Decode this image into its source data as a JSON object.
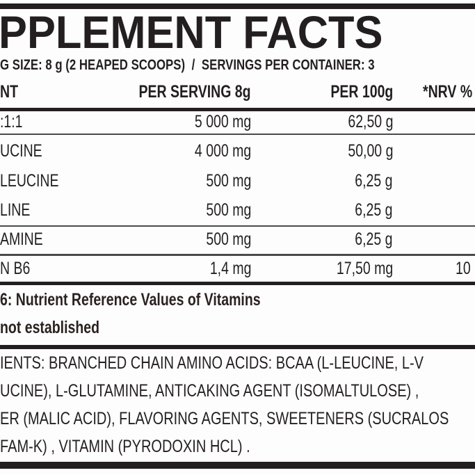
{
  "label": {
    "title": "PPLEMENT FACTS",
    "serving_size": "G SIZE: 8 g (2 HEAPED SCOOPS)",
    "separator": "/",
    "servings_per_container": "SERVINGS PER CONTAINER: 3",
    "table": {
      "headers": {
        "name": "NT",
        "per_serving": "PER SERVING 8g",
        "per_100g": "PER 100g",
        "nrv": "*NRV %"
      },
      "rows": [
        {
          "name": ":1:1",
          "per_serving": "5 000 mg",
          "per_100g": "62,50 g",
          "nrv": ""
        },
        {
          "name": "UCINE",
          "per_serving": "4 000 mg",
          "per_100g": "50,00 g",
          "nrv": ""
        },
        {
          "name": "LEUCINE",
          "per_serving": "500 mg",
          "per_100g": "6,25 g",
          "nrv": ""
        },
        {
          "name": "LINE",
          "per_serving": "500 mg",
          "per_100g": "6,25 g",
          "nrv": ""
        },
        {
          "name": "AMINE",
          "per_serving": "500 mg",
          "per_100g": "6,25 g",
          "nrv": ""
        },
        {
          "name": "N B6",
          "per_serving": "1,4 mg",
          "per_100g": "17,50 mg",
          "nrv": "10"
        }
      ]
    },
    "footnotes": [
      "6: Nutrient Reference Values  of  Vitamins",
      "not established"
    ],
    "ingredients_lines": [
      "IENTS: BRANCHED  CHAIN AMINO ACIDS: BCAA (L-LEUCINE, L-V",
      "UCINE), L-GLUTAMINE, ANTICAKING AGENT (ISOMALTULOSE) ,",
      "ER (MALIC ACID), FLAVORING AGENTS, SWEETENERS (SUCRALOS",
      "FAM-K) , VITAMIN (PYRODOXIN HCL) ."
    ],
    "colors": {
      "ink": "#231f20",
      "background": "#fdfdfd"
    }
  }
}
